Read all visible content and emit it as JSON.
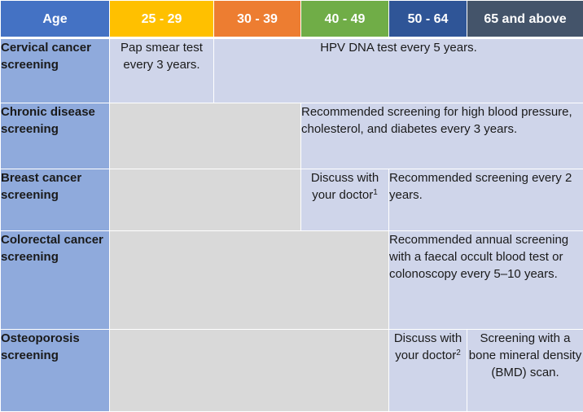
{
  "header": {
    "age_label": "Age",
    "groups": [
      "25 - 29",
      "30 - 39",
      "40 - 49",
      "50 - 64",
      "65 and above"
    ]
  },
  "rows": {
    "cervical": {
      "label": "Cervical cancer screening",
      "pap": "Pap smear test every 3 years.",
      "hpv": "HPV DNA test every 5 years."
    },
    "chronic": {
      "label": "Chronic disease screening",
      "text": "Recommended screening for high blood pressure, cholesterol, and diabetes every 3 years."
    },
    "breast": {
      "label": "Breast cancer screening",
      "discuss": "Discuss with your doctor",
      "discuss_note": "1",
      "text": "Recommended screening every 2 years."
    },
    "colorectal": {
      "label": "Colorectal cancer screening",
      "text": "Recommended annual screening with a faecal occult blood test or colonoscopy every 5–10 years."
    },
    "osteoporosis": {
      "label": "Osteoporosis screening",
      "discuss": "Discuss with your doctor",
      "discuss_note": "2",
      "text": "Screening with a bone mineral density (BMD) scan."
    }
  },
  "colors": {
    "age_header": "#4472c4",
    "group_25_29": "#ffc000",
    "group_30_39": "#ed7d31",
    "group_40_49": "#70ad47",
    "group_50_64": "#2f5597",
    "group_65_above": "#44546a",
    "row_label": "#8faadc",
    "not_applicable": "#d9d9d9",
    "recommended": "#cfd5ea"
  }
}
